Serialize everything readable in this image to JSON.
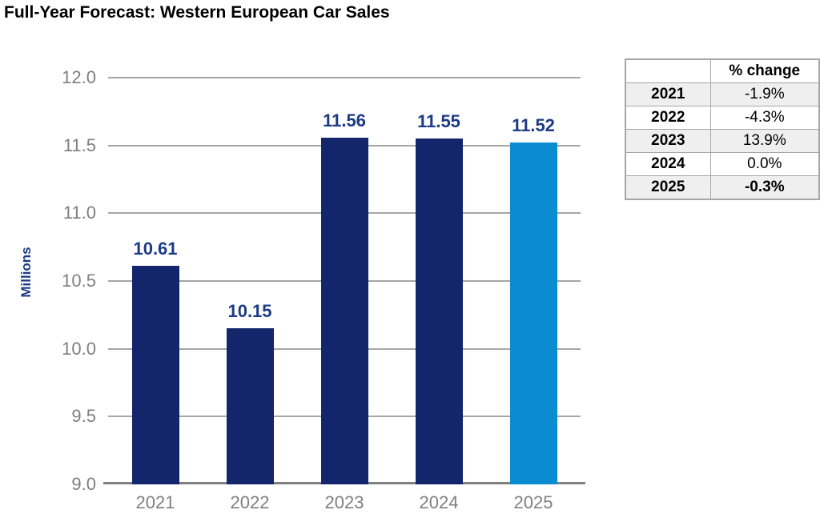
{
  "title": "Full-Year Forecast: Western European Car Sales",
  "chart_data": {
    "type": "bar",
    "title": "Full-Year Forecast: Western European Car Sales",
    "categories": [
      "2021",
      "2022",
      "2023",
      "2024",
      "2025"
    ],
    "values": [
      10.61,
      10.15,
      11.56,
      11.55,
      11.52
    ],
    "value_labels": [
      "10.61",
      "10.15",
      "11.56",
      "11.55",
      "11.52"
    ],
    "xlabel": "",
    "ylabel": "Millions",
    "ylim": [
      9.0,
      12.0
    ],
    "ytick_step": 0.5,
    "yticks": [
      "12.0",
      "11.5",
      "11.0",
      "10.5",
      "10.0",
      "9.5",
      "9.0"
    ],
    "grid": true,
    "legend": false,
    "bar_colors": [
      "#13266B",
      "#13266B",
      "#13266B",
      "#13266B",
      "#0B8BD1"
    ],
    "highlight_category": "2025"
  },
  "table": {
    "title_header": "% change",
    "rows": [
      {
        "year": "2021",
        "change": "-1.9%",
        "bold": false
      },
      {
        "year": "2022",
        "change": "-4.3%",
        "bold": false
      },
      {
        "year": "2023",
        "change": "13.9%",
        "bold": false
      },
      {
        "year": "2024",
        "change": "0.0%",
        "bold": false
      },
      {
        "year": "2025",
        "change": "-0.3%",
        "bold": true
      }
    ]
  },
  "colors": {
    "title_text": "#000000",
    "bar_navy": "#13266B",
    "bar_light_blue": "#0B8BD1",
    "label_navy": "#1C3A85",
    "axis_text": "#7F7F7F",
    "gridline": "#A6A6A6",
    "axis_line": "#808080",
    "table_border": "#A6A6A6",
    "table_alt_row": "#EFEFEF"
  }
}
